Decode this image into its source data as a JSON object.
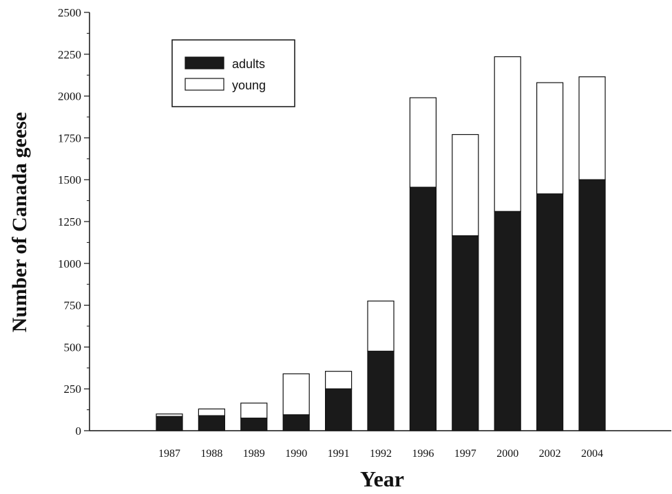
{
  "chart_data": {
    "type": "bar",
    "stacked": true,
    "title": "",
    "xlabel": "Year",
    "ylabel": "Number of Canada geese",
    "ylim": [
      0,
      2500
    ],
    "yticks": [
      "0",
      "250",
      "500",
      "750",
      "1000",
      "1250",
      "1500",
      "1750",
      "2000",
      "2250",
      "2500"
    ],
    "categories": [
      "1987",
      "1988",
      "1989",
      "1990",
      "1991",
      "1992",
      "1996",
      "1997",
      "2000",
      "2002",
      "2004"
    ],
    "series": [
      {
        "name": "adults",
        "values": [
          85,
          90,
          75,
          95,
          250,
          475,
          1455,
          1165,
          1310,
          1415,
          1500
        ]
      },
      {
        "name": "young",
        "values": [
          15,
          40,
          90,
          245,
          105,
          300,
          535,
          605,
          925,
          665,
          615
        ]
      }
    ],
    "colors": {
      "adults": "#1a1a1a",
      "young": "#ffffff"
    },
    "legend_position": "top-left",
    "grid": false
  }
}
